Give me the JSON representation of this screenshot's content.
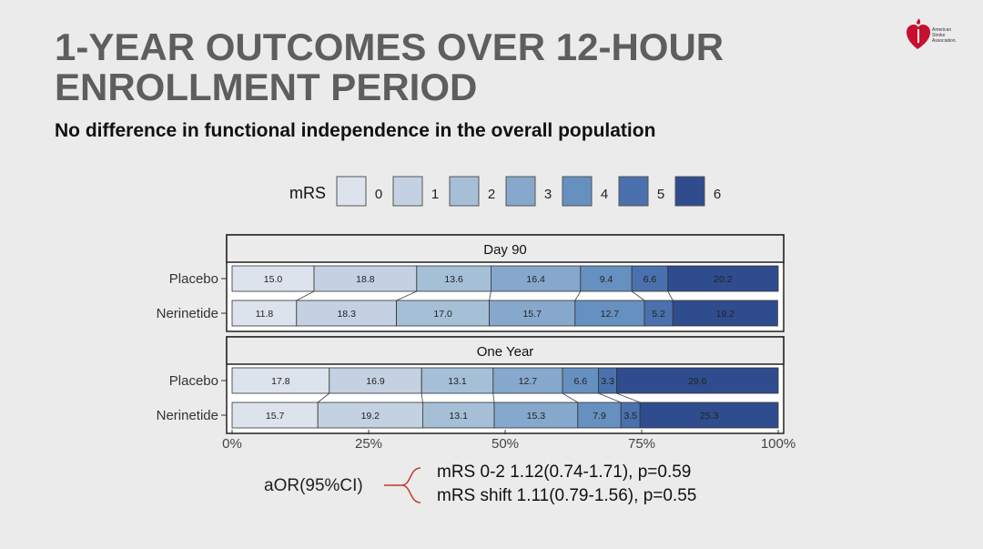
{
  "slide": {
    "title_line1": "1-YEAR OUTCOMES OVER 12-HOUR",
    "title_line2": "ENROLLMENT PERIOD",
    "subtitle": "No difference in functional independence in the overall population",
    "logo_text": [
      "American",
      "Stroke",
      "Association."
    ]
  },
  "colors": {
    "mrs": [
      "#dde3ec",
      "#c3d1e2",
      "#a5bfd7",
      "#85a8cc",
      "#6690bf",
      "#4a71ad",
      "#2f4c8e"
    ]
  },
  "chart_data": {
    "type": "bar",
    "orientation": "horizontal-stacked-100",
    "legend_title": "mRS",
    "legend_entries": [
      "0",
      "1",
      "2",
      "3",
      "4",
      "5",
      "6"
    ],
    "legend_position": "top",
    "x_ticks": [
      "0%",
      "25%",
      "50%",
      "75%",
      "100%"
    ],
    "xlim": [
      0,
      100
    ],
    "panels": [
      {
        "title": "Day 90",
        "rows": [
          {
            "label": "Placebo",
            "values": [
              15.0,
              18.8,
              13.6,
              16.4,
              9.4,
              6.6,
              20.2
            ]
          },
          {
            "label": "Nerinetide",
            "values": [
              11.8,
              18.3,
              17.0,
              15.7,
              12.7,
              5.2,
              19.2
            ]
          }
        ]
      },
      {
        "title": "One Year",
        "rows": [
          {
            "label": "Placebo",
            "values": [
              17.8,
              16.9,
              13.1,
              12.7,
              6.6,
              3.3,
              29.6
            ]
          },
          {
            "label": "Nerinetide",
            "values": [
              15.7,
              19.2,
              13.1,
              15.3,
              7.9,
              3.5,
              25.3
            ]
          }
        ]
      }
    ]
  },
  "stats": {
    "label": "aOR(95%CI)",
    "line1": "mRS 0-2  1.12(0.74-1.71), p=0.59",
    "line2": "mRS shift 1.11(0.79-1.56), p=0.55"
  }
}
